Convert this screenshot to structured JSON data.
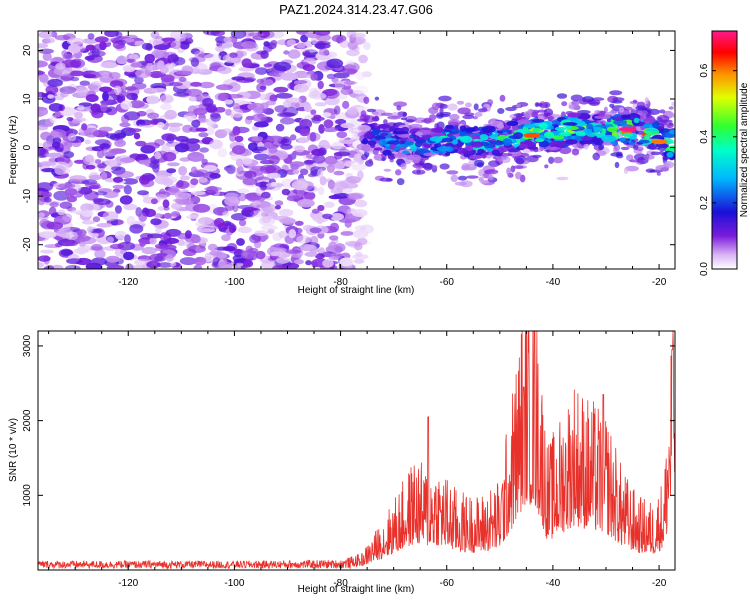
{
  "title": "PAZ1.2024.314.23.47.G06",
  "colors": {
    "snr_line": "#e8312b",
    "background": "#ffffff",
    "frame": "#000000"
  },
  "chart_data": [
    {
      "type": "heatmap",
      "title": "PAZ1.2024.314.23.47.G06",
      "xlabel": "Height of straight line (km)",
      "ylabel": "Frequency (Hz)",
      "xlim": [
        -137,
        -17
      ],
      "ylim": [
        -25,
        24
      ],
      "xticks": [
        -120,
        -100,
        -80,
        -60,
        -40,
        -20
      ],
      "yticks": [
        -20,
        -10,
        0,
        10,
        20
      ],
      "colorbar": {
        "label": "Normalized spectral amplitude",
        "range": [
          0,
          0.72
        ],
        "ticks": [
          0.0,
          0.2,
          0.4,
          0.6
        ],
        "colormap": "white-purple-blue-cyan-green-yellow-red-magenta"
      },
      "features": {
        "noise_region_x": [
          -137,
          -75
        ],
        "noise_amplitude": 0.12,
        "ridge": {
          "x": [
            -76,
            -70,
            -65,
            -60,
            -55,
            -50,
            -45,
            -40,
            -35,
            -30,
            -25,
            -20,
            -17
          ],
          "frequency": [
            3.0,
            1.0,
            0.5,
            1.5,
            1.0,
            1.5,
            2.5,
            3.0,
            4.0,
            4.0,
            3.5,
            2.0,
            0.5
          ],
          "peak_amplitude": [
            0.2,
            0.35,
            0.35,
            0.4,
            0.38,
            0.45,
            0.55,
            0.5,
            0.5,
            0.45,
            0.72,
            0.6,
            0.55
          ]
        }
      },
      "grid": false
    },
    {
      "type": "line",
      "xlabel": "Height of straight line (km)",
      "ylabel": "SNR (10 * v/v)",
      "xlim": [
        -137,
        -17
      ],
      "ylim": [
        0,
        3200
      ],
      "xticks": [
        -120,
        -100,
        -80,
        -60,
        -40,
        -20
      ],
      "yticks": [
        1000,
        2000,
        3000
      ],
      "series": [
        {
          "color": "#e8312b",
          "envelope": {
            "x": [
              -137,
              -120,
              -100,
              -80,
              -76,
              -72,
              -68,
              -66,
              -64,
              -62,
              -58,
              -54,
              -50,
              -47,
              -45,
              -43,
              -41,
              -39,
              -36,
              -33,
              -30,
              -27,
              -24,
              -21,
              -19,
              -17
            ],
            "y": [
              80,
              80,
              80,
              90,
              150,
              450,
              800,
              1000,
              900,
              950,
              700,
              650,
              800,
              1800,
              2600,
              2300,
              1100,
              1300,
              1700,
              1500,
              1400,
              900,
              650,
              600,
              850,
              2900
            ]
          },
          "peaks": [
            {
              "x": -63.5,
              "y": 2050
            },
            {
              "x": -45.5,
              "y": 2450
            },
            {
              "x": -43.5,
              "y": 3200
            },
            {
              "x": -30.5,
              "y": 2350
            },
            {
              "x": -17.5,
              "y": 2950
            }
          ]
        }
      ],
      "grid": false
    }
  ]
}
